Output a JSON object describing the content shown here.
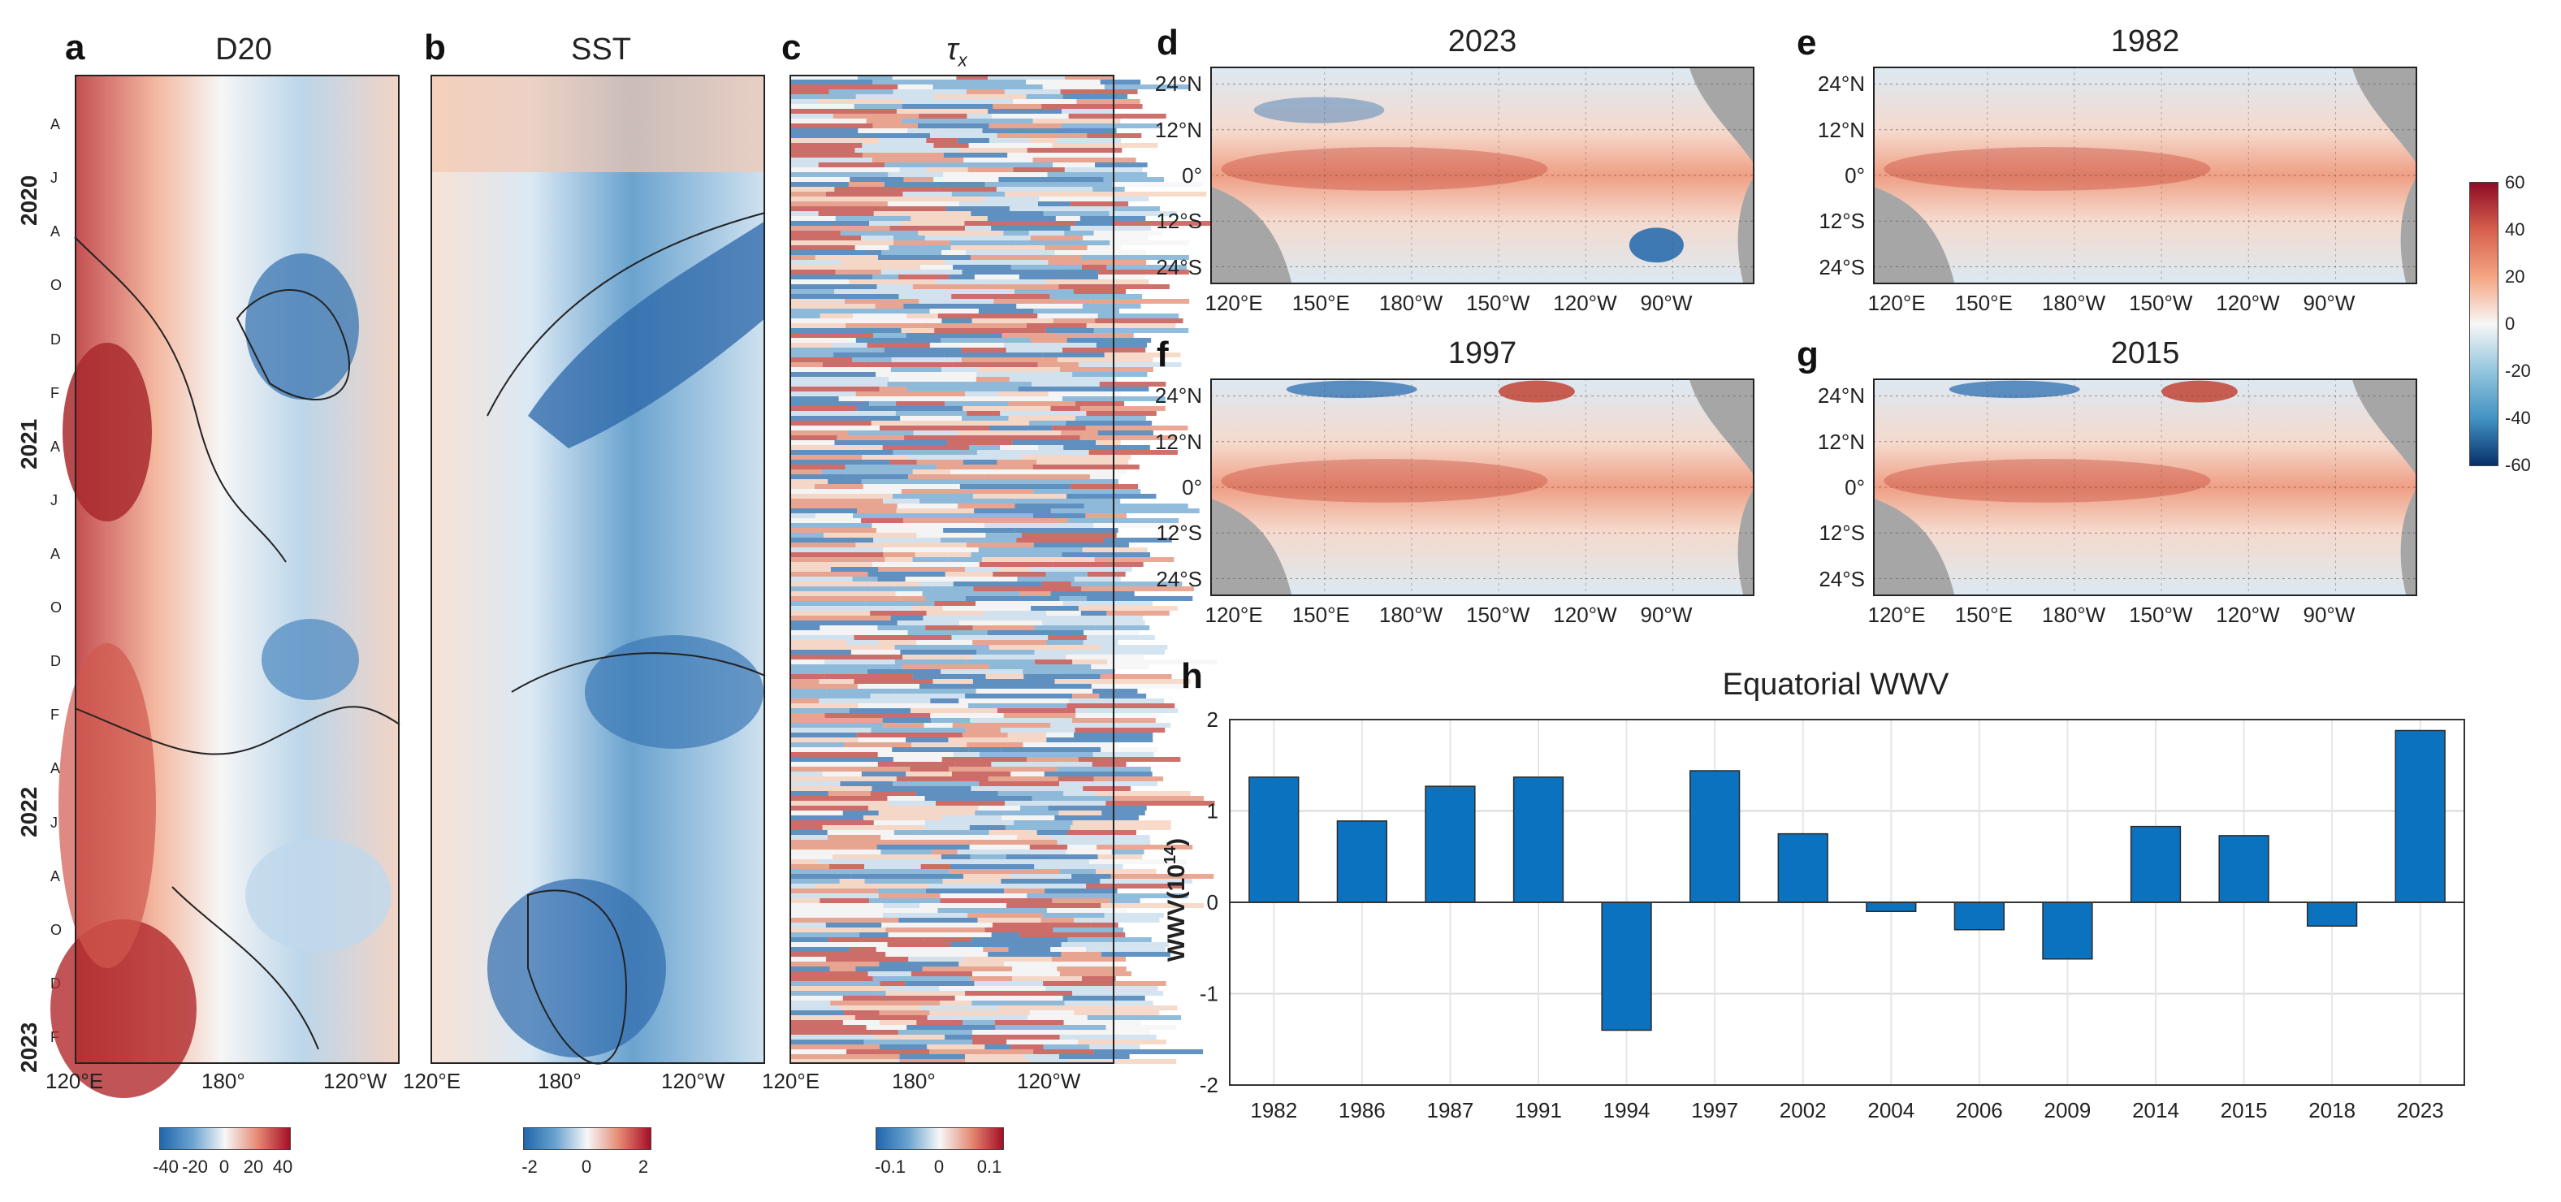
{
  "hovmoller": {
    "panels": [
      {
        "letter": "a",
        "title": "D20",
        "colorbar_ticks": [
          "-40",
          "-20",
          "0",
          "20",
          "40"
        ],
        "x_ticks": [
          "120°E",
          "180°",
          "120°W"
        ]
      },
      {
        "letter": "b",
        "title": "SST",
        "colorbar_ticks": [
          "-2",
          "0",
          "2"
        ],
        "x_ticks": [
          "120°E",
          "180°",
          "120°W"
        ]
      },
      {
        "letter": "c",
        "title": "τ",
        "title_sub": "x",
        "colorbar_ticks": [
          "-0.1",
          "0",
          "0.1"
        ],
        "x_ticks": [
          "120°E",
          "180°",
          "120°W"
        ]
      }
    ],
    "years": [
      "2020",
      "2021",
      "2022",
      "2023"
    ],
    "months": [
      "A",
      "J",
      "A",
      "O",
      "D",
      "F",
      "A",
      "J",
      "A",
      "O",
      "D",
      "F",
      "A",
      "J",
      "A",
      "O",
      "D",
      "F"
    ]
  },
  "maps": {
    "panels": [
      {
        "letter": "d",
        "title": "2023"
      },
      {
        "letter": "e",
        "title": "1982"
      },
      {
        "letter": "f",
        "title": "1997"
      },
      {
        "letter": "g",
        "title": "2015"
      }
    ],
    "lat_ticks": [
      "24°N",
      "12°N",
      "0°",
      "12°S",
      "24°S"
    ],
    "lon_ticks": [
      "120°E",
      "150°E",
      "180°W",
      "150°W",
      "120°W",
      "90°W"
    ],
    "colorbar_ticks": [
      "60",
      "40",
      "20",
      "0",
      "-20",
      "-40",
      "-60"
    ],
    "colors": {
      "land": "#a6a6a6",
      "warm": "#c0392b",
      "cool": "#2166ac"
    }
  },
  "bar": {
    "letter": "h",
    "title": "Equatorial WWV",
    "ylabel_main": "WWV(10",
    "ylabel_sup": "14",
    "ylabel_close": ")",
    "y_tick_labels": [
      "2",
      "1",
      "0",
      "-1",
      "-2"
    ],
    "bar_color": "#0a72be"
  },
  "chart_data": {
    "type": "bar",
    "title": "Equatorial WWV",
    "ylabel": "WWV(10^14)",
    "xlabel": "",
    "ylim": [
      -2,
      2
    ],
    "grid": true,
    "categories": [
      "1982",
      "1986",
      "1987",
      "1991",
      "1994",
      "1997",
      "2002",
      "2004",
      "2006",
      "2009",
      "2014",
      "2015",
      "2018",
      "2023"
    ],
    "values": [
      1.37,
      0.89,
      1.27,
      1.37,
      -1.4,
      1.44,
      0.75,
      -0.1,
      -0.3,
      -0.62,
      0.83,
      0.73,
      -0.26,
      1.88
    ]
  }
}
